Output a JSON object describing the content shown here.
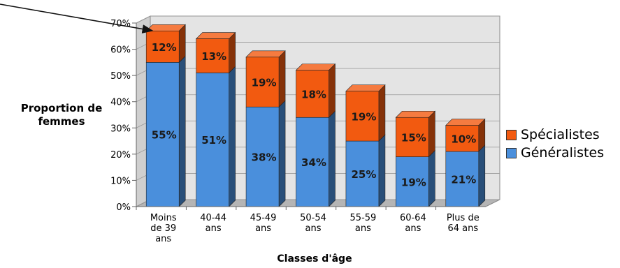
{
  "chart_data": {
    "type": "bar",
    "stacked": true,
    "categories": [
      "Moins de 39 ans",
      "40-44 ans",
      "45-49 ans",
      "50-54 ans",
      "55-59 ans",
      "60-64 ans",
      "Plus de 64 ans"
    ],
    "category_lines": [
      [
        "Moins",
        "de 39",
        "ans"
      ],
      [
        "40-44",
        "ans"
      ],
      [
        "45-49",
        "ans"
      ],
      [
        "50-54",
        "ans"
      ],
      [
        "55-59",
        "ans"
      ],
      [
        "60-64",
        "ans"
      ],
      [
        "Plus de",
        "64 ans"
      ]
    ],
    "series": [
      {
        "name": "Généralistes",
        "color": "#4a8fdc",
        "values": [
          55,
          51,
          38,
          34,
          25,
          19,
          21
        ]
      },
      {
        "name": "Spécialistes",
        "color": "#f25a10",
        "values": [
          12,
          13,
          19,
          18,
          19,
          15,
          10
        ]
      }
    ],
    "data_labels": {
      "Généralistes": [
        "55%",
        "51%",
        "38%",
        "34%",
        "25%",
        "19%",
        "21%"
      ],
      "Spécialistes": [
        "12%",
        "13%",
        "19%",
        "18%",
        "19%",
        "15%",
        "10%"
      ]
    },
    "ylabel_lines": [
      "Proportion de",
      "femmes"
    ],
    "xlabel": "Classes d'âge",
    "ylim": [
      0,
      70
    ],
    "yticks": [
      0,
      10,
      20,
      30,
      40,
      50,
      60,
      70
    ],
    "ytick_labels": [
      "0%",
      "10%",
      "20%",
      "30%",
      "40%",
      "50%",
      "60%",
      "70%"
    ],
    "grid": true,
    "legend_position": "right",
    "has_arrow_annotation": true
  }
}
